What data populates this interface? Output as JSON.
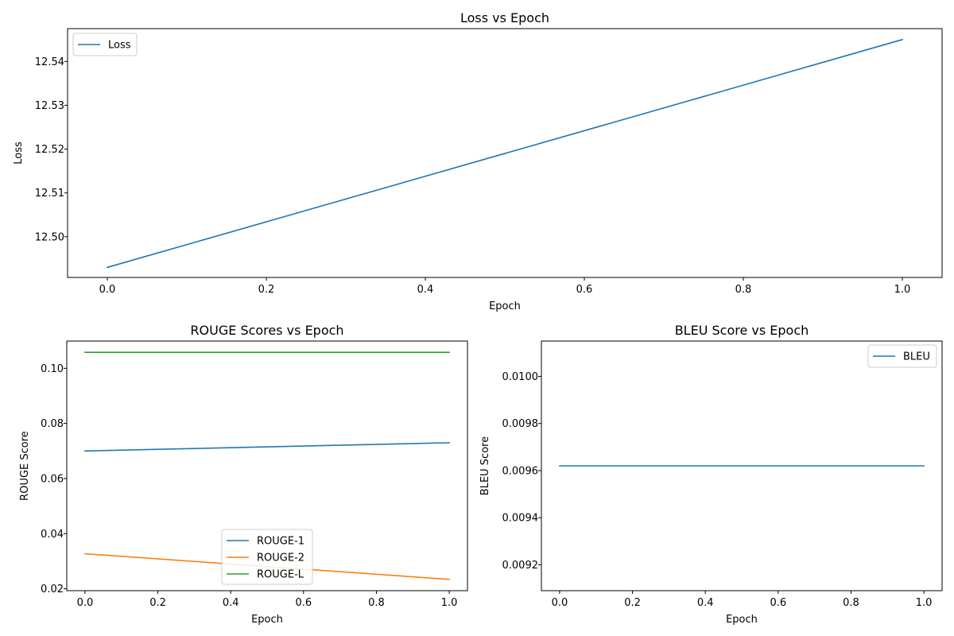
{
  "chart_data": [
    {
      "type": "line",
      "title": "Loss vs Epoch",
      "xlabel": "Epoch",
      "ylabel": "Loss",
      "xlim": [
        -0.05,
        1.05
      ],
      "ylim": [
        12.4907,
        12.5475
      ],
      "xticks": [
        0.0,
        0.2,
        0.4,
        0.6,
        0.8,
        1.0
      ],
      "xtick_labels": [
        "0.0",
        "0.2",
        "0.4",
        "0.6",
        "0.8",
        "1.0"
      ],
      "yticks": [
        12.5,
        12.51,
        12.52,
        12.53,
        12.54
      ],
      "ytick_labels": [
        "12.50",
        "12.51",
        "12.52",
        "12.53",
        "12.54"
      ],
      "legend_position": "upper-left",
      "grid": false,
      "series": [
        {
          "name": "Loss",
          "color": "#1f77b4",
          "x": [
            0,
            1
          ],
          "y": [
            12.493,
            12.545
          ]
        }
      ]
    },
    {
      "type": "line",
      "title": "ROUGE Scores vs Epoch",
      "xlabel": "Epoch",
      "ylabel": "ROUGE Score",
      "xlim": [
        -0.05,
        1.05
      ],
      "ylim": [
        0.0193,
        0.1099
      ],
      "xticks": [
        0.0,
        0.2,
        0.4,
        0.6,
        0.8,
        1.0
      ],
      "xtick_labels": [
        "0.0",
        "0.2",
        "0.4",
        "0.6",
        "0.8",
        "1.0"
      ],
      "yticks": [
        0.02,
        0.04,
        0.06,
        0.08,
        0.1
      ],
      "ytick_labels": [
        "0.02",
        "0.04",
        "0.06",
        "0.08",
        "0.10"
      ],
      "legend_position": "lower-center",
      "grid": false,
      "series": [
        {
          "name": "ROUGE-1",
          "color": "#1f77b4",
          "x": [
            0,
            1
          ],
          "y": [
            0.07,
            0.073
          ]
        },
        {
          "name": "ROUGE-2",
          "color": "#ff7f0e",
          "x": [
            0,
            1
          ],
          "y": [
            0.0327,
            0.0234
          ]
        },
        {
          "name": "ROUGE-L",
          "color": "#2ca02c",
          "x": [
            0,
            1
          ],
          "y": [
            0.1058,
            0.1058
          ]
        }
      ]
    },
    {
      "type": "line",
      "title": "BLEU Score vs Epoch",
      "xlabel": "Epoch",
      "ylabel": "BLEU Score",
      "xlim": [
        -0.05,
        1.05
      ],
      "ylim": [
        0.00909,
        0.01015
      ],
      "xticks": [
        0.0,
        0.2,
        0.4,
        0.6,
        0.8,
        1.0
      ],
      "xtick_labels": [
        "0.0",
        "0.2",
        "0.4",
        "0.6",
        "0.8",
        "1.0"
      ],
      "yticks": [
        0.0092,
        0.0094,
        0.0096,
        0.0098,
        0.01
      ],
      "ytick_labels": [
        "0.0092",
        "0.0094",
        "0.0096",
        "0.0098",
        "0.0100"
      ],
      "legend_position": "upper-right",
      "grid": false,
      "series": [
        {
          "name": "BLEU",
          "color": "#1f77b4",
          "x": [
            0,
            1
          ],
          "y": [
            0.00962,
            0.00962
          ]
        }
      ]
    }
  ]
}
